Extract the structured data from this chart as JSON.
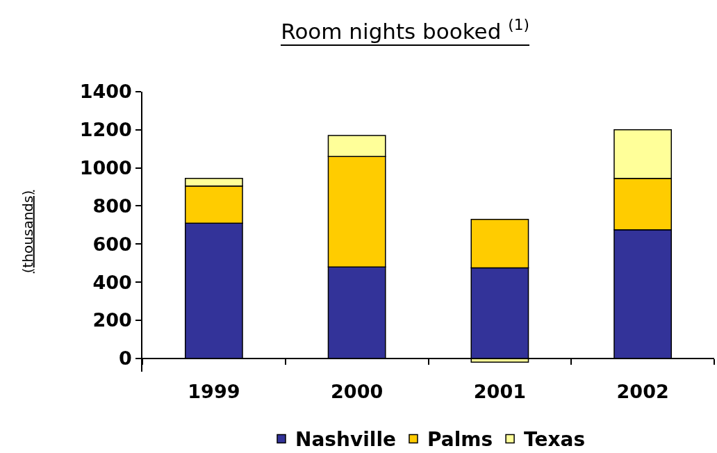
{
  "chart_data": {
    "type": "bar",
    "title": "Room nights booked $^{(1)}$",
    "ylabel": "(thousands)",
    "categories": [
      "1999",
      "2000",
      "2001",
      "2002"
    ],
    "series": [
      {
        "name": "Nashville",
        "color": "#333399",
        "values": [
          710,
          480,
          475,
          675
        ]
      },
      {
        "name": "Palms",
        "color": "#ffcc00",
        "values": [
          195,
          580,
          255,
          270
        ]
      },
      {
        "name": "Texas",
        "color": "#ffff99",
        "values": [
          40,
          110,
          -20,
          255
        ]
      }
    ],
    "stacked": true,
    "ylim": [
      -70,
      1400
    ],
    "yticks": [
      0,
      200,
      400,
      600,
      800,
      1000,
      1200,
      1400
    ],
    "legend": "bottom"
  }
}
